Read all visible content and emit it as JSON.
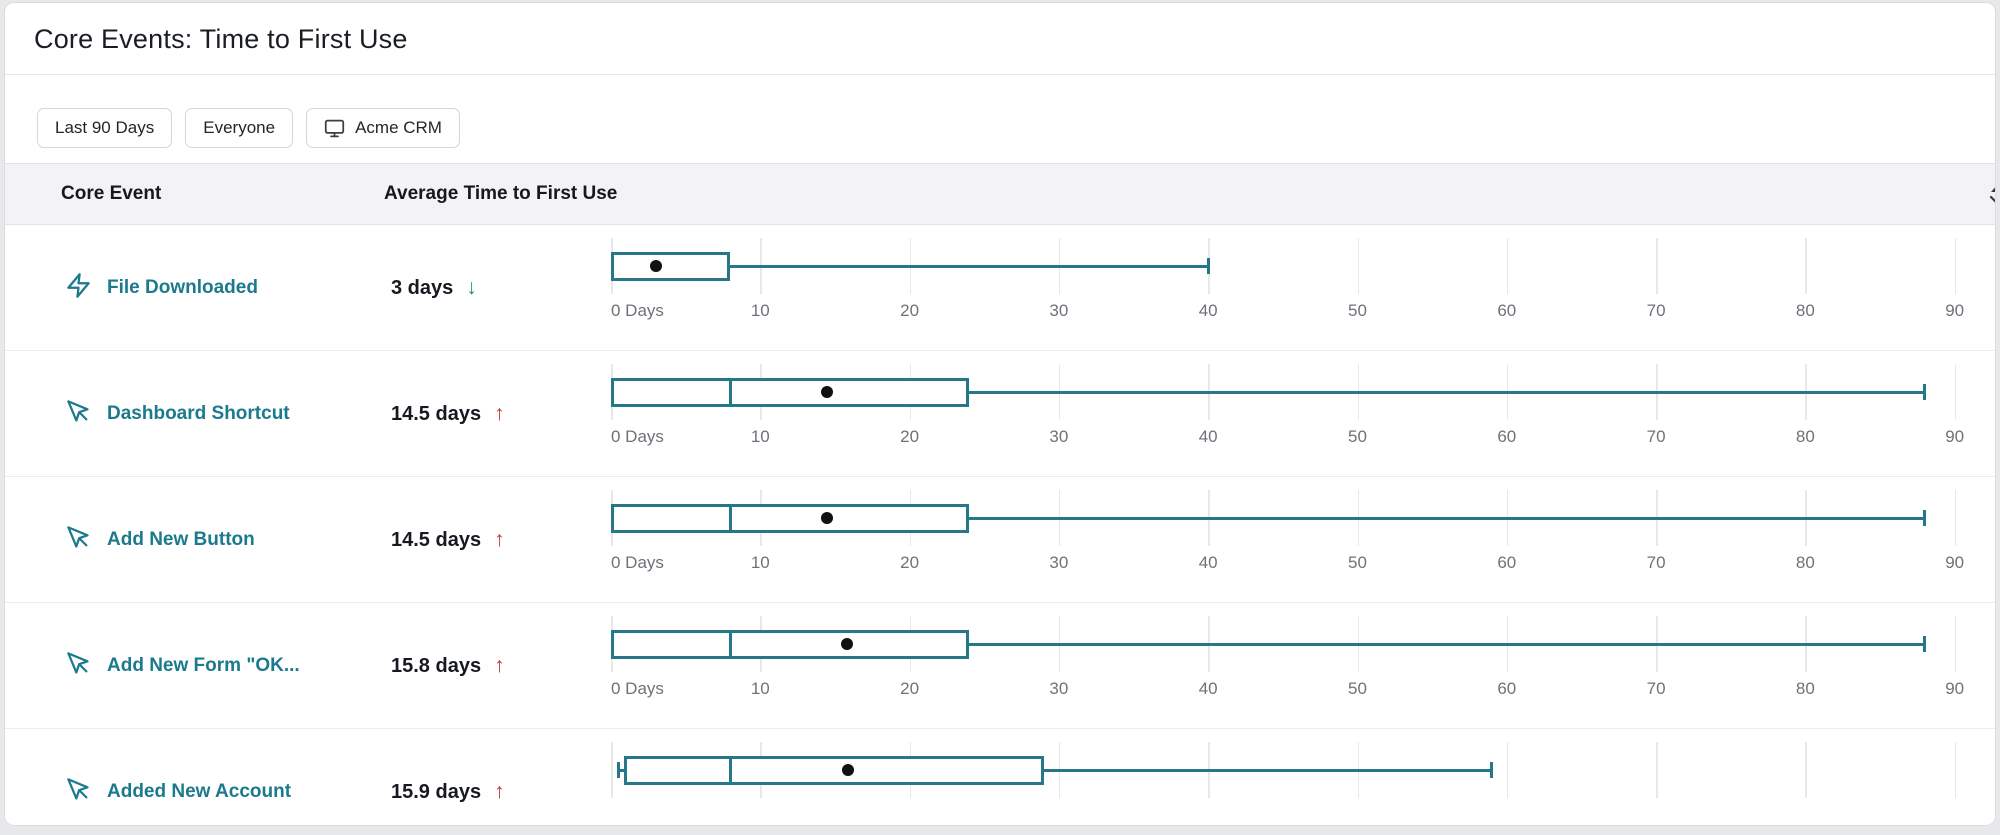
{
  "title": "Core Events: Time to First Use",
  "filters": {
    "date_range": "Last 90 Days",
    "segment": "Everyone",
    "app": "Acme CRM"
  },
  "table": {
    "columns": {
      "event": "Core Event",
      "average": "Average Time to First Use"
    }
  },
  "axis": {
    "tick_values": [
      0,
      10,
      20,
      30,
      40,
      50,
      60,
      70,
      80,
      90
    ],
    "tick_labels": [
      "0 Days",
      "10",
      "20",
      "30",
      "40",
      "50",
      "60",
      "70",
      "80",
      "90"
    ],
    "unit": "days"
  },
  "chart_data": {
    "type": "boxplot",
    "orientation": "horizontal",
    "xlim": [
      0,
      92
    ],
    "xlabel": "Days",
    "rows": [
      {
        "event": "File Downloaded",
        "icon": "zap-icon",
        "value": "3 days",
        "trend": "down",
        "boxplot": {
          "whisker_low": 0,
          "q1": 0,
          "median": null,
          "q3": 8,
          "whisker_high": 40,
          "mean": 3,
          "left_cap": false
        },
        "show_axis_labels": true
      },
      {
        "event": "Dashboard Shortcut",
        "icon": "cursor-icon",
        "value": "14.5 days",
        "trend": "up",
        "boxplot": {
          "whisker_low": 0,
          "q1": 0,
          "median": 8,
          "q3": 24,
          "whisker_high": 88,
          "mean": 14.5,
          "left_cap": false
        },
        "show_axis_labels": true
      },
      {
        "event": "Add New Button",
        "icon": "cursor-icon",
        "value": "14.5 days",
        "trend": "up",
        "boxplot": {
          "whisker_low": 0,
          "q1": 0,
          "median": 8,
          "q3": 24,
          "whisker_high": 88,
          "mean": 14.5,
          "left_cap": false
        },
        "show_axis_labels": true
      },
      {
        "event": "Add New Form \"OK...",
        "icon": "cursor-icon",
        "value": "15.8 days",
        "trend": "up",
        "boxplot": {
          "whisker_low": 0,
          "q1": 0,
          "median": 8,
          "q3": 24,
          "whisker_high": 88,
          "mean": 15.8,
          "left_cap": false
        },
        "show_axis_labels": true
      },
      {
        "event": "Added New Account",
        "icon": "cursor-icon",
        "value": "15.9 days",
        "trend": "up",
        "boxplot": {
          "whisker_low": 0.4,
          "q1": 0.9,
          "median": 8,
          "q3": 29,
          "whisker_high": 59,
          "mean": 15.9,
          "left_cap": true
        },
        "show_axis_labels": false
      }
    ]
  },
  "colors": {
    "teal": "#257789",
    "link": "#1b7a8d",
    "trend_up": "#c0362c",
    "trend_down": "#219653"
  },
  "glyphs": {
    "trend_up": "↑",
    "trend_down": "↓"
  }
}
